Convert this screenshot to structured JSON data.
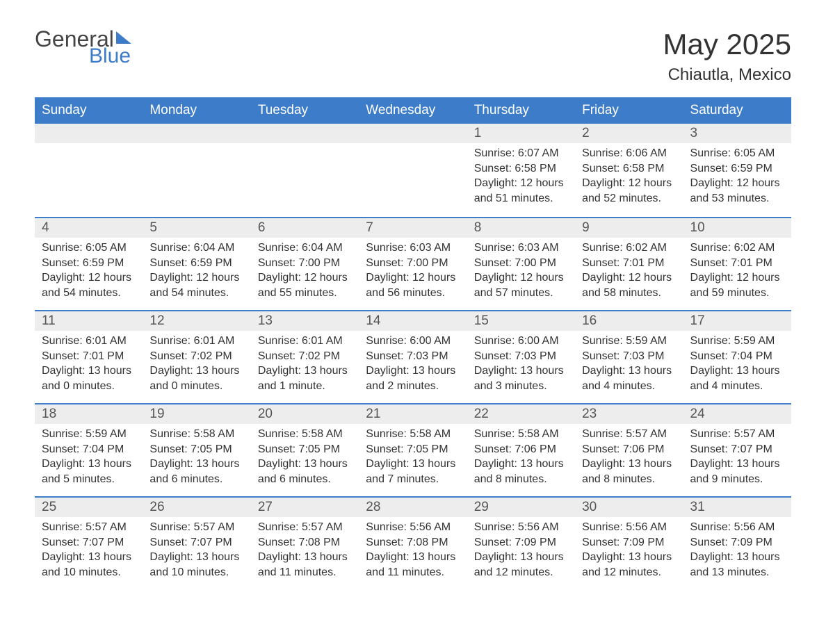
{
  "logo": {
    "general": "General",
    "blue": "Blue"
  },
  "header": {
    "title": "May 2025",
    "location": "Chiautla, Mexico"
  },
  "colors": {
    "brand": "#3d7cc9",
    "header_bg": "#3d7cc9",
    "header_text": "#ffffff",
    "daynum_bg": "#ededed",
    "text": "#333333",
    "border": "#3d7cc9"
  },
  "day_names": [
    "Sunday",
    "Monday",
    "Tuesday",
    "Wednesday",
    "Thursday",
    "Friday",
    "Saturday"
  ],
  "weeks": [
    [
      {
        "blank": true
      },
      {
        "blank": true
      },
      {
        "blank": true
      },
      {
        "blank": true
      },
      {
        "day": "1",
        "sunrise": "Sunrise: 6:07 AM",
        "sunset": "Sunset: 6:58 PM",
        "daylight": "Daylight: 12 hours and 51 minutes."
      },
      {
        "day": "2",
        "sunrise": "Sunrise: 6:06 AM",
        "sunset": "Sunset: 6:58 PM",
        "daylight": "Daylight: 12 hours and 52 minutes."
      },
      {
        "day": "3",
        "sunrise": "Sunrise: 6:05 AM",
        "sunset": "Sunset: 6:59 PM",
        "daylight": "Daylight: 12 hours and 53 minutes."
      }
    ],
    [
      {
        "day": "4",
        "sunrise": "Sunrise: 6:05 AM",
        "sunset": "Sunset: 6:59 PM",
        "daylight": "Daylight: 12 hours and 54 minutes."
      },
      {
        "day": "5",
        "sunrise": "Sunrise: 6:04 AM",
        "sunset": "Sunset: 6:59 PM",
        "daylight": "Daylight: 12 hours and 54 minutes."
      },
      {
        "day": "6",
        "sunrise": "Sunrise: 6:04 AM",
        "sunset": "Sunset: 7:00 PM",
        "daylight": "Daylight: 12 hours and 55 minutes."
      },
      {
        "day": "7",
        "sunrise": "Sunrise: 6:03 AM",
        "sunset": "Sunset: 7:00 PM",
        "daylight": "Daylight: 12 hours and 56 minutes."
      },
      {
        "day": "8",
        "sunrise": "Sunrise: 6:03 AM",
        "sunset": "Sunset: 7:00 PM",
        "daylight": "Daylight: 12 hours and 57 minutes."
      },
      {
        "day": "9",
        "sunrise": "Sunrise: 6:02 AM",
        "sunset": "Sunset: 7:01 PM",
        "daylight": "Daylight: 12 hours and 58 minutes."
      },
      {
        "day": "10",
        "sunrise": "Sunrise: 6:02 AM",
        "sunset": "Sunset: 7:01 PM",
        "daylight": "Daylight: 12 hours and 59 minutes."
      }
    ],
    [
      {
        "day": "11",
        "sunrise": "Sunrise: 6:01 AM",
        "sunset": "Sunset: 7:01 PM",
        "daylight": "Daylight: 13 hours and 0 minutes."
      },
      {
        "day": "12",
        "sunrise": "Sunrise: 6:01 AM",
        "sunset": "Sunset: 7:02 PM",
        "daylight": "Daylight: 13 hours and 0 minutes."
      },
      {
        "day": "13",
        "sunrise": "Sunrise: 6:01 AM",
        "sunset": "Sunset: 7:02 PM",
        "daylight": "Daylight: 13 hours and 1 minute."
      },
      {
        "day": "14",
        "sunrise": "Sunrise: 6:00 AM",
        "sunset": "Sunset: 7:03 PM",
        "daylight": "Daylight: 13 hours and 2 minutes."
      },
      {
        "day": "15",
        "sunrise": "Sunrise: 6:00 AM",
        "sunset": "Sunset: 7:03 PM",
        "daylight": "Daylight: 13 hours and 3 minutes."
      },
      {
        "day": "16",
        "sunrise": "Sunrise: 5:59 AM",
        "sunset": "Sunset: 7:03 PM",
        "daylight": "Daylight: 13 hours and 4 minutes."
      },
      {
        "day": "17",
        "sunrise": "Sunrise: 5:59 AM",
        "sunset": "Sunset: 7:04 PM",
        "daylight": "Daylight: 13 hours and 4 minutes."
      }
    ],
    [
      {
        "day": "18",
        "sunrise": "Sunrise: 5:59 AM",
        "sunset": "Sunset: 7:04 PM",
        "daylight": "Daylight: 13 hours and 5 minutes."
      },
      {
        "day": "19",
        "sunrise": "Sunrise: 5:58 AM",
        "sunset": "Sunset: 7:05 PM",
        "daylight": "Daylight: 13 hours and 6 minutes."
      },
      {
        "day": "20",
        "sunrise": "Sunrise: 5:58 AM",
        "sunset": "Sunset: 7:05 PM",
        "daylight": "Daylight: 13 hours and 6 minutes."
      },
      {
        "day": "21",
        "sunrise": "Sunrise: 5:58 AM",
        "sunset": "Sunset: 7:05 PM",
        "daylight": "Daylight: 13 hours and 7 minutes."
      },
      {
        "day": "22",
        "sunrise": "Sunrise: 5:58 AM",
        "sunset": "Sunset: 7:06 PM",
        "daylight": "Daylight: 13 hours and 8 minutes."
      },
      {
        "day": "23",
        "sunrise": "Sunrise: 5:57 AM",
        "sunset": "Sunset: 7:06 PM",
        "daylight": "Daylight: 13 hours and 8 minutes."
      },
      {
        "day": "24",
        "sunrise": "Sunrise: 5:57 AM",
        "sunset": "Sunset: 7:07 PM",
        "daylight": "Daylight: 13 hours and 9 minutes."
      }
    ],
    [
      {
        "day": "25",
        "sunrise": "Sunrise: 5:57 AM",
        "sunset": "Sunset: 7:07 PM",
        "daylight": "Daylight: 13 hours and 10 minutes."
      },
      {
        "day": "26",
        "sunrise": "Sunrise: 5:57 AM",
        "sunset": "Sunset: 7:07 PM",
        "daylight": "Daylight: 13 hours and 10 minutes."
      },
      {
        "day": "27",
        "sunrise": "Sunrise: 5:57 AM",
        "sunset": "Sunset: 7:08 PM",
        "daylight": "Daylight: 13 hours and 11 minutes."
      },
      {
        "day": "28",
        "sunrise": "Sunrise: 5:56 AM",
        "sunset": "Sunset: 7:08 PM",
        "daylight": "Daylight: 13 hours and 11 minutes."
      },
      {
        "day": "29",
        "sunrise": "Sunrise: 5:56 AM",
        "sunset": "Sunset: 7:09 PM",
        "daylight": "Daylight: 13 hours and 12 minutes."
      },
      {
        "day": "30",
        "sunrise": "Sunrise: 5:56 AM",
        "sunset": "Sunset: 7:09 PM",
        "daylight": "Daylight: 13 hours and 12 minutes."
      },
      {
        "day": "31",
        "sunrise": "Sunrise: 5:56 AM",
        "sunset": "Sunset: 7:09 PM",
        "daylight": "Daylight: 13 hours and 13 minutes."
      }
    ]
  ]
}
